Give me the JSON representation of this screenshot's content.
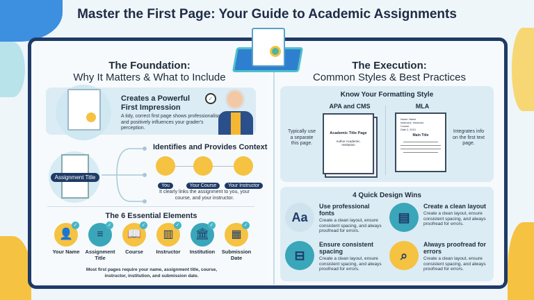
{
  "title": "Master the First Page: Your Guide to Academic Assignments",
  "left": {
    "heading_line1": "The Foundation:",
    "heading_line2": "Why It Matters & What to Include",
    "impression": {
      "title_line1": "Creates a Powerful",
      "title_line2": "First Impression",
      "body": "A tidy, correct first page shows professionalism and positively influences your grader's perception."
    },
    "context": {
      "title": "Identifies and Provides Context",
      "doc_label": "Assignment Title",
      "items": [
        "You",
        "Your Course",
        "Your Instructor"
      ],
      "body": "It clearly links the assignment to you, your course, and your instructor."
    },
    "elements": {
      "title": "The 6 Essential Elements",
      "items": [
        {
          "label": "Your Name",
          "icon": "person-icon",
          "color": "#f5c242"
        },
        {
          "label": "Assignment Title",
          "icon": "document-icon",
          "color": "#3aa6b9"
        },
        {
          "label": "Course",
          "icon": "book-icon",
          "color": "#f5c242"
        },
        {
          "label": "Instructor",
          "icon": "podium-icon",
          "color": "#f5c242"
        },
        {
          "label": "Institution",
          "icon": "building-icon",
          "color": "#3aa6b9"
        },
        {
          "label": "Submission Date",
          "icon": "calendar-icon",
          "color": "#f5c242"
        }
      ],
      "footer": "Most first pages require your name, assignment title, course, instructor, institution, and submission date."
    }
  },
  "right": {
    "heading_line1": "The Execution:",
    "heading_line2": "Common Styles & Best Practices",
    "formatting": {
      "title": "Know Your Formatting Style",
      "apa": {
        "label": "APA and CMS",
        "note": "Typically use a separate this page.",
        "doc_title": "Academic Title Page",
        "doc_sub": "Author Academic, Institution"
      },
      "mla": {
        "label": "MLA",
        "note": "Integrates info on the first text page.",
        "doc_header": "Name: Name\nInstructor, Instructor\nCourse\nDate 2, 2013",
        "doc_title": "Main Title"
      }
    },
    "wins": {
      "title": "4 Quick Design Wins",
      "items": [
        {
          "title": "Use professional fonts",
          "body": "Create a clean layout, ensure consistent spacing, and always proofread for errors.",
          "icon": "font-icon",
          "color": "#cfe3ee"
        },
        {
          "title": "Create a clean layout",
          "body": "Create a clean layout, ensure consistent spacing, and always proofread for errors.",
          "icon": "layout-icon",
          "color": "#3aa6b9"
        },
        {
          "title": "Ensure consistent spacing",
          "body": "Create a clean layout, ensure consistent spacing, and always proofread for errors.",
          "icon": "ruler-icon",
          "color": "#3aa6b9"
        },
        {
          "title": "Always proofread for errors",
          "body": "Create a clean layout, ensure consistent spacing, and always proofread for errors.",
          "icon": "magnifier-icon",
          "color": "#f5c242"
        }
      ]
    }
  }
}
